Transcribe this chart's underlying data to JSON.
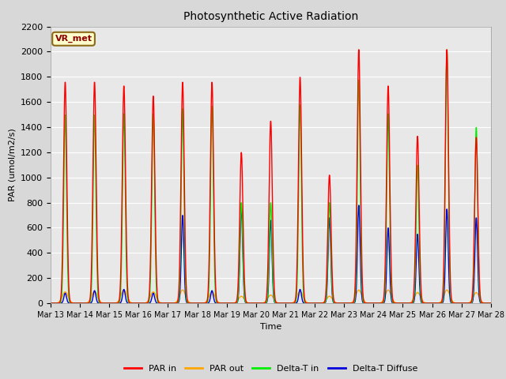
{
  "title": "Photosynthetic Active Radiation",
  "ylabel": "PAR (umol/m2/s)",
  "xlabel": "Time",
  "ylim": [
    0,
    2200
  ],
  "annotation": "VR_met",
  "colors": {
    "PAR in": "#ff0000",
    "PAR out": "#ffa500",
    "Delta-T in": "#00ee00",
    "Delta-T Diffuse": "#0000dd"
  },
  "legend_labels": [
    "PAR in",
    "PAR out",
    "Delta-T in",
    "Delta-T Diffuse"
  ],
  "fig_bg": "#d8d8d8",
  "axes_bg": "#e8e8e8",
  "n_days": 15,
  "points_per_day": 144,
  "day_labels": [
    "Mar 13",
    "Mar 14",
    "Mar 15",
    "Mar 16",
    "Mar 17",
    "Mar 18",
    "Mar 19",
    "Mar 20",
    "Mar 21",
    "Mar 22",
    "Mar 23",
    "Mar 24",
    "Mar 25",
    "Mar 26",
    "Mar 27",
    "Mar 28"
  ],
  "peaks_par_in": [
    1760,
    1760,
    1730,
    1650,
    1760,
    1760,
    1200,
    1450,
    1800,
    1020,
    2020,
    1730,
    1330,
    2020,
    1320
  ],
  "peaks_par_out": [
    90,
    95,
    105,
    90,
    105,
    90,
    55,
    65,
    95,
    55,
    105,
    105,
    85,
    105,
    85
  ],
  "peaks_delta_t": [
    1500,
    1500,
    1510,
    1510,
    1550,
    1570,
    800,
    800,
    1580,
    800,
    1780,
    1510,
    1100,
    2020,
    1400
  ],
  "peaks_diffuse": [
    80,
    100,
    110,
    80,
    700,
    100,
    760,
    660,
    110,
    680,
    780,
    600,
    550,
    750,
    680
  ],
  "yticks": [
    0,
    200,
    400,
    600,
    800,
    1000,
    1200,
    1400,
    1600,
    1800,
    2000,
    2200
  ]
}
